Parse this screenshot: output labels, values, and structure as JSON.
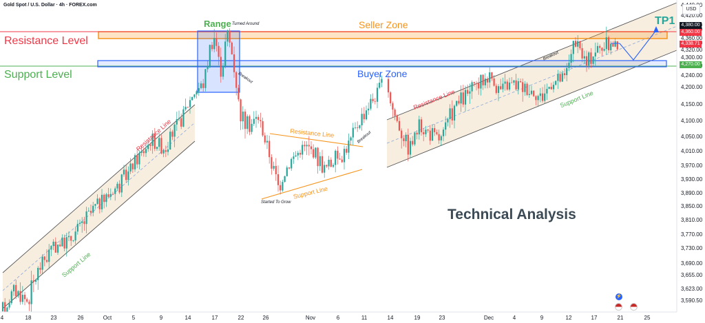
{
  "header": {
    "symbol_title": "Gold Spot / U.S. Dollar · 4h · FOREX.com",
    "currency_button": "USD"
  },
  "annotations": {
    "resistance_level": "Resistance Level",
    "support_level": "Support Level",
    "range": "Range",
    "turned_around": "Turned Around",
    "seller_zone": "Seller Zone",
    "buyer_zone": "Buyer Zone",
    "tp1": "TP1",
    "breakout_1": "Breakout",
    "breakout_2": "Breakout",
    "breakout_3": "Breakout",
    "resistance_line_1": "Resistance Line",
    "resistance_line_2": "Resistance Line",
    "resistance_line_3": "Resistance Line",
    "support_line_1": "Support Line",
    "support_line_2": "Support Line",
    "support_line_3": "Support Line",
    "started_to_grow": "Started To Grow",
    "technical_analysis": "Technical Analysis"
  },
  "price_tags": {
    "seller_upper": "4,380.00",
    "seller_lower": "4,360.00",
    "last_price": "4,338.71",
    "buyer_level": "4,270.00"
  },
  "colors": {
    "up": "#26a69a",
    "down": "#ef5350",
    "orange": "#f7931a",
    "blue": "#2962ff",
    "green_text": "#4caf50",
    "red_text": "#f23645",
    "teal_text": "#26a69a"
  },
  "chart_data": {
    "type": "candlestick",
    "title": "Gold Spot / U.S. Dollar · 4h · FOREX.com",
    "y_ticks": [
      "4,440.00",
      "4,420.00",
      "4,400.00",
      "4,380.00",
      "4,360.00",
      "4,340.00",
      "4,320.00",
      "4,300.00",
      "4,280.00",
      "4,240.00",
      "4,200.00",
      "4,150.00",
      "4,100.00",
      "4,050.00",
      "4,010.00",
      "3,970.00",
      "3,930.00",
      "3,890.00",
      "3,850.00",
      "3,810.00",
      "3,770.00",
      "3,730.00",
      "3,690.00",
      "3,655.00",
      "3,623.00",
      "3,590.50"
    ],
    "x_ticks": [
      "4",
      "18",
      "23",
      "26",
      "Oct",
      "5",
      "9",
      "14",
      "17",
      "22",
      "26",
      "Nov",
      "6",
      "11",
      "14",
      "19",
      "23",
      "Dec",
      "4",
      "9",
      "12",
      "17",
      "21",
      "25"
    ],
    "ohlc_approx": [
      {
        "date": "Sep 4",
        "close": 3540
      },
      {
        "date": "Sep 23",
        "close": 3760
      },
      {
        "date": "Oct 8",
        "close": 4040
      },
      {
        "date": "Oct 14",
        "close": 4160
      },
      {
        "date": "Oct 17",
        "close": 4370
      },
      {
        "date": "Oct 20",
        "close": 4340
      },
      {
        "date": "Oct 22",
        "close": 4100
      },
      {
        "date": "Oct 28",
        "close": 3920
      },
      {
        "date": "Nov 4",
        "close": 3990
      },
      {
        "date": "Nov 6",
        "close": 3960
      },
      {
        "date": "Nov 11",
        "close": 4130
      },
      {
        "date": "Nov 13",
        "close": 4230
      },
      {
        "date": "Nov 14",
        "close": 4080
      },
      {
        "date": "Nov 19",
        "close": 4060
      },
      {
        "date": "Dec 1",
        "close": 4230
      },
      {
        "date": "Dec 9",
        "close": 4200
      },
      {
        "date": "Dec 12",
        "close": 4330
      },
      {
        "date": "Dec 19",
        "close": 4338.71
      }
    ],
    "seller_zone": [
      4360,
      4380
    ],
    "buyer_zone": 4270,
    "ylim": [
      3560,
      4460
    ]
  }
}
